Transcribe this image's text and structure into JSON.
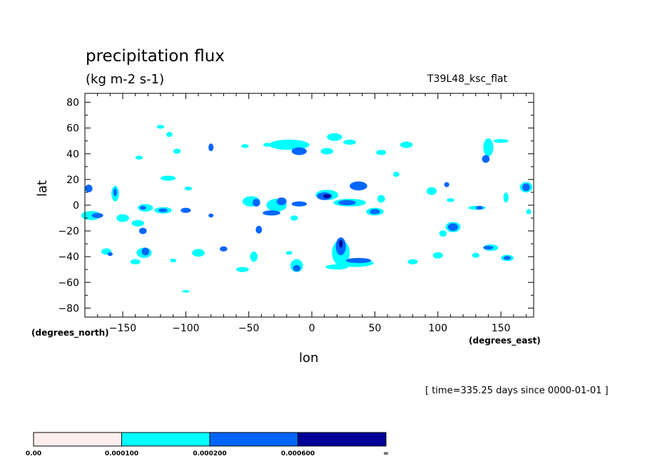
{
  "chart_data": {
    "type": "heatmap",
    "title": "precipitation flux",
    "units": "(kg m-2 s-1)",
    "run_label": "T39L48_ksc_flat",
    "time_label": "[ time=335.25 days since 0000-01-01 ]",
    "xlabel": "lon",
    "ylabel": "lat",
    "x_units_label": "(degrees_east)",
    "y_units_label": "(degrees_north)",
    "xlim": [
      -180,
      176
    ],
    "ylim": [
      -87,
      87
    ],
    "x_ticks": [
      -150,
      -100,
      -50,
      0,
      50,
      100,
      150
    ],
    "x_tick_labels": [
      "−150",
      "−100",
      "−50",
      "0",
      "50",
      "100",
      "150"
    ],
    "y_ticks": [
      -80,
      -60,
      -40,
      -20,
      0,
      20,
      40,
      60,
      80
    ],
    "y_tick_labels": [
      "−80",
      "−60",
      "−40",
      "−20",
      "0",
      "20",
      "40",
      "60",
      "80"
    ],
    "levels": [
      {
        "label": "0.00",
        "color": "#ffeeee"
      },
      {
        "label": "0.000100",
        "color": "#00ffff"
      },
      {
        "label": "0.000200",
        "color": "#0066ff"
      },
      {
        "label": "0.000600",
        "color": "#000099"
      },
      {
        "label": "∞",
        "color": ""
      }
    ],
    "regions": [
      {
        "lon": -120,
        "lat": 61,
        "w": 6,
        "h": 3,
        "level": 1
      },
      {
        "lon": -113,
        "lat": 55,
        "w": 5,
        "h": 4,
        "level": 1
      },
      {
        "lon": -107,
        "lat": 42,
        "w": 6,
        "h": 4,
        "level": 1
      },
      {
        "lon": -137,
        "lat": 37,
        "w": 6,
        "h": 3,
        "level": 1
      },
      {
        "lon": -80,
        "lat": 45,
        "w": 4,
        "h": 6,
        "level": 2
      },
      {
        "lon": -53,
        "lat": 46,
        "w": 6,
        "h": 3,
        "level": 1
      },
      {
        "lon": -35,
        "lat": 47,
        "w": 7,
        "h": 3,
        "level": 1
      },
      {
        "lon": -18,
        "lat": 47,
        "w": 32,
        "h": 8,
        "level": 1
      },
      {
        "lon": -10,
        "lat": 42,
        "w": 12,
        "h": 6,
        "level": 2
      },
      {
        "lon": 18,
        "lat": 53,
        "w": 12,
        "h": 6,
        "level": 1
      },
      {
        "lon": 30,
        "lat": 49,
        "w": 10,
        "h": 4,
        "level": 1
      },
      {
        "lon": 12,
        "lat": 42,
        "w": 10,
        "h": 5,
        "level": 1
      },
      {
        "lon": 55,
        "lat": 41,
        "w": 8,
        "h": 4,
        "level": 1
      },
      {
        "lon": 75,
        "lat": 47,
        "w": 10,
        "h": 5,
        "level": 1
      },
      {
        "lon": 67,
        "lat": 24,
        "w": 5,
        "h": 4,
        "level": 1
      },
      {
        "lon": 140,
        "lat": 45,
        "w": 8,
        "h": 14,
        "level": 1
      },
      {
        "lon": 150,
        "lat": 50,
        "w": 12,
        "h": 3,
        "level": 1
      },
      {
        "lon": 138,
        "lat": 36,
        "w": 6,
        "h": 6,
        "level": 2
      },
      {
        "lon": -177,
        "lat": 13,
        "w": 6,
        "h": 6,
        "level": 2
      },
      {
        "lon": -156,
        "lat": 9,
        "w": 6,
        "h": 12,
        "level": 1
      },
      {
        "lon": -156,
        "lat": 10,
        "w": 3,
        "h": 6,
        "level": 2
      },
      {
        "lon": -114,
        "lat": 21,
        "w": 12,
        "h": 4,
        "level": 1
      },
      {
        "lon": -98,
        "lat": 13,
        "w": 6,
        "h": 3,
        "level": 1
      },
      {
        "lon": -175,
        "lat": -8,
        "w": 16,
        "h": 7,
        "level": 1
      },
      {
        "lon": -170,
        "lat": -8,
        "w": 9,
        "h": 4,
        "level": 2
      },
      {
        "lon": -150,
        "lat": -10,
        "w": 10,
        "h": 6,
        "level": 1
      },
      {
        "lon": -138,
        "lat": -14,
        "w": 10,
        "h": 5,
        "level": 1
      },
      {
        "lon": -134,
        "lat": -20,
        "w": 6,
        "h": 5,
        "level": 2
      },
      {
        "lon": -132,
        "lat": -2,
        "w": 12,
        "h": 6,
        "level": 1
      },
      {
        "lon": -134,
        "lat": -2,
        "w": 5,
        "h": 3,
        "level": 2
      },
      {
        "lon": -118,
        "lat": -4,
        "w": 14,
        "h": 5,
        "level": 1
      },
      {
        "lon": -118,
        "lat": -4,
        "w": 7,
        "h": 3,
        "level": 2
      },
      {
        "lon": -100,
        "lat": -4,
        "w": 8,
        "h": 4,
        "level": 2
      },
      {
        "lon": -80,
        "lat": -8,
        "w": 4,
        "h": 3,
        "level": 2
      },
      {
        "lon": -48,
        "lat": 3,
        "w": 14,
        "h": 8,
        "level": 1
      },
      {
        "lon": -44,
        "lat": 2,
        "w": 6,
        "h": 6,
        "level": 2
      },
      {
        "lon": -28,
        "lat": 0,
        "w": 16,
        "h": 10,
        "level": 1
      },
      {
        "lon": -24,
        "lat": 3,
        "w": 8,
        "h": 6,
        "level": 2
      },
      {
        "lon": -32,
        "lat": -6,
        "w": 14,
        "h": 4,
        "level": 2
      },
      {
        "lon": -10,
        "lat": 1,
        "w": 12,
        "h": 4,
        "level": 2
      },
      {
        "lon": -42,
        "lat": -19,
        "w": 5,
        "h": 6,
        "level": 2
      },
      {
        "lon": -14,
        "lat": -10,
        "w": 6,
        "h": 4,
        "level": 1
      },
      {
        "lon": 12,
        "lat": 8,
        "w": 18,
        "h": 8,
        "level": 1
      },
      {
        "lon": 10,
        "lat": 7,
        "w": 12,
        "h": 6,
        "level": 2
      },
      {
        "lon": 12,
        "lat": 7,
        "w": 6,
        "h": 3,
        "level": 3
      },
      {
        "lon": 37,
        "lat": 15,
        "w": 14,
        "h": 7,
        "level": 2
      },
      {
        "lon": 30,
        "lat": 2,
        "w": 26,
        "h": 6,
        "level": 1
      },
      {
        "lon": 28,
        "lat": 2,
        "w": 14,
        "h": 4,
        "level": 2
      },
      {
        "lon": 50,
        "lat": -5,
        "w": 14,
        "h": 6,
        "level": 1
      },
      {
        "lon": 50,
        "lat": -5,
        "w": 8,
        "h": 4,
        "level": 2
      },
      {
        "lon": 55,
        "lat": 5,
        "w": 6,
        "h": 6,
        "level": 1
      },
      {
        "lon": 95,
        "lat": 11,
        "w": 8,
        "h": 6,
        "level": 1
      },
      {
        "lon": 107,
        "lat": 16,
        "w": 4,
        "h": 4,
        "level": 2
      },
      {
        "lon": 110,
        "lat": 4,
        "w": 6,
        "h": 3,
        "level": 1
      },
      {
        "lon": 131,
        "lat": -2,
        "w": 14,
        "h": 3,
        "level": 1
      },
      {
        "lon": 133,
        "lat": -2,
        "w": 6,
        "h": 3,
        "level": 2
      },
      {
        "lon": 154,
        "lat": 6,
        "w": 4,
        "h": 8,
        "level": 1
      },
      {
        "lon": 170,
        "lat": 14,
        "w": 10,
        "h": 8,
        "level": 1
      },
      {
        "lon": 170,
        "lat": 14,
        "w": 6,
        "h": 6,
        "level": 2
      },
      {
        "lon": 172,
        "lat": -5,
        "w": 4,
        "h": 4,
        "level": 1
      },
      {
        "lon": 112,
        "lat": -17,
        "w": 12,
        "h": 8,
        "level": 1
      },
      {
        "lon": 112,
        "lat": -17,
        "w": 8,
        "h": 6,
        "level": 2
      },
      {
        "lon": 104,
        "lat": -22,
        "w": 6,
        "h": 5,
        "level": 1
      },
      {
        "lon": -163,
        "lat": -36,
        "w": 8,
        "h": 5,
        "level": 1
      },
      {
        "lon": -160,
        "lat": -38,
        "w": 4,
        "h": 3,
        "level": 2
      },
      {
        "lon": -133,
        "lat": -37,
        "w": 12,
        "h": 8,
        "level": 1
      },
      {
        "lon": -132,
        "lat": -36,
        "w": 6,
        "h": 6,
        "level": 2
      },
      {
        "lon": -140,
        "lat": -44,
        "w": 8,
        "h": 4,
        "level": 1
      },
      {
        "lon": -110,
        "lat": -43,
        "w": 5,
        "h": 3,
        "level": 1
      },
      {
        "lon": -90,
        "lat": -37,
        "w": 10,
        "h": 6,
        "level": 1
      },
      {
        "lon": -70,
        "lat": -34,
        "w": 6,
        "h": 4,
        "level": 2
      },
      {
        "lon": -46,
        "lat": -40,
        "w": 6,
        "h": 8,
        "level": 1
      },
      {
        "lon": -55,
        "lat": -50,
        "w": 10,
        "h": 4,
        "level": 1
      },
      {
        "lon": -18,
        "lat": -37,
        "w": 5,
        "h": 3,
        "level": 1
      },
      {
        "lon": -12,
        "lat": -47,
        "w": 10,
        "h": 10,
        "level": 1
      },
      {
        "lon": -12,
        "lat": -49,
        "w": 6,
        "h": 5,
        "level": 2
      },
      {
        "lon": 23,
        "lat": -37,
        "w": 14,
        "h": 20,
        "level": 1
      },
      {
        "lon": 23,
        "lat": -32,
        "w": 8,
        "h": 14,
        "level": 2
      },
      {
        "lon": 23,
        "lat": -30,
        "w": 3,
        "h": 6,
        "level": 3
      },
      {
        "lon": 35,
        "lat": -45,
        "w": 28,
        "h": 6,
        "level": 1
      },
      {
        "lon": 37,
        "lat": -43,
        "w": 20,
        "h": 4,
        "level": 2
      },
      {
        "lon": 20,
        "lat": -48,
        "w": 18,
        "h": 4,
        "level": 1
      },
      {
        "lon": 80,
        "lat": -44,
        "w": 8,
        "h": 4,
        "level": 1
      },
      {
        "lon": 100,
        "lat": -39,
        "w": 8,
        "h": 5,
        "level": 1
      },
      {
        "lon": 130,
        "lat": -39,
        "w": 6,
        "h": 4,
        "level": 1
      },
      {
        "lon": 142,
        "lat": -33,
        "w": 12,
        "h": 5,
        "level": 1
      },
      {
        "lon": 140,
        "lat": -33,
        "w": 8,
        "h": 3,
        "level": 2
      },
      {
        "lon": 155,
        "lat": -41,
        "w": 10,
        "h": 5,
        "level": 1
      },
      {
        "lon": 155,
        "lat": -41,
        "w": 6,
        "h": 3,
        "level": 2
      },
      {
        "lon": -100,
        "lat": -67,
        "w": 6,
        "h": 2,
        "level": 1
      }
    ]
  }
}
